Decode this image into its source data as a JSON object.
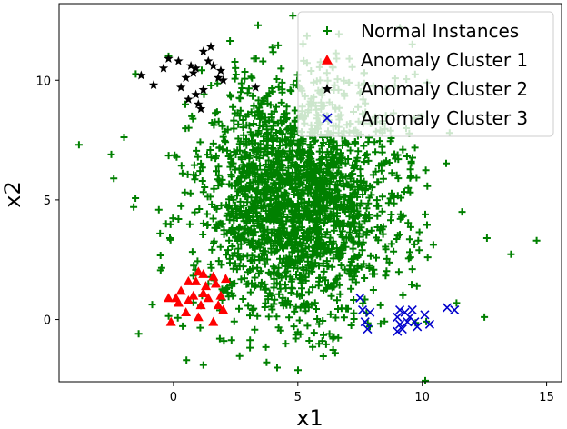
{
  "chart_data": {
    "type": "scatter",
    "xlabel": "x1",
    "ylabel": "x2",
    "xlim": [
      -4.6,
      15.6
    ],
    "ylim": [
      -2.6,
      13.2
    ],
    "xticks": [
      "0",
      "5",
      "10",
      "15"
    ],
    "yticks": [
      "0",
      "5",
      "10"
    ],
    "xtick_values": [
      0,
      5,
      10,
      15
    ],
    "ytick_values": [
      0,
      5,
      10
    ],
    "grid": false,
    "legend_position": "top-right",
    "series": [
      {
        "name": "Normal Instances",
        "marker": "plus",
        "color": "#008000",
        "count_approx": 2000,
        "distribution": "gaussian, center approx (5, 5), std approx (2, 2.5)",
        "outlier_points": [
          [
            -3.8,
            7.3
          ],
          [
            -2.5,
            6.9
          ],
          [
            -2.4,
            5.9
          ],
          [
            -1.6,
            4.7
          ],
          [
            -1.4,
            -0.6
          ],
          [
            -0.2,
            11.0
          ],
          [
            3.4,
            12.3
          ],
          [
            4.8,
            12.7
          ],
          [
            6.5,
            -1.4
          ],
          [
            7.6,
            8.6
          ],
          [
            11.6,
            4.5
          ],
          [
            12.5,
            0.1
          ],
          [
            12.6,
            3.4
          ],
          [
            14.6,
            3.3
          ],
          [
            1.2,
            -1.9
          ],
          [
            10.2,
            9.9
          ],
          [
            9.6,
            11.5
          ],
          [
            11.1,
            7.8
          ],
          [
            0.2,
            4.2
          ],
          [
            9.1,
            12.2
          ]
        ]
      },
      {
        "name": "Anomaly Cluster 1",
        "marker": "triangle",
        "color": "#ff0000",
        "points": [
          [
            -0.2,
            0.9
          ],
          [
            0.1,
            0.9
          ],
          [
            0.2,
            0.7
          ],
          [
            0.3,
            1.2
          ],
          [
            -0.1,
            -0.1
          ],
          [
            0.6,
            0.8
          ],
          [
            0.8,
            1.0
          ],
          [
            0.9,
            1.6
          ],
          [
            1.0,
            2.0
          ],
          [
            1.1,
            0.6
          ],
          [
            1.2,
            1.1
          ],
          [
            1.3,
            1.4
          ],
          [
            1.4,
            0.9
          ],
          [
            1.6,
            1.8
          ],
          [
            1.7,
            1.5
          ],
          [
            1.8,
            0.6
          ],
          [
            1.9,
            1.0
          ],
          [
            2.1,
            1.7
          ],
          [
            1.0,
            0.1
          ],
          [
            1.6,
            -0.1
          ],
          [
            2.0,
            0.4
          ],
          [
            0.6,
            1.6
          ],
          [
            1.2,
            1.9
          ],
          [
            0.5,
            0.3
          ]
        ]
      },
      {
        "name": "Anomaly Cluster 2",
        "marker": "star",
        "color": "#000000",
        "points": [
          [
            -1.3,
            10.2
          ],
          [
            -0.8,
            9.8
          ],
          [
            -0.4,
            10.5
          ],
          [
            -0.2,
            10.9
          ],
          [
            0.2,
            10.8
          ],
          [
            0.3,
            9.7
          ],
          [
            0.5,
            10.1
          ],
          [
            0.6,
            9.2
          ],
          [
            0.8,
            10.3
          ],
          [
            0.9,
            10.5
          ],
          [
            0.9,
            9.4
          ],
          [
            1.0,
            9.0
          ],
          [
            1.1,
            8.8
          ],
          [
            1.2,
            9.6
          ],
          [
            1.2,
            11.2
          ],
          [
            1.4,
            10.8
          ],
          [
            1.5,
            11.4
          ],
          [
            1.6,
            10.6
          ],
          [
            1.8,
            10.1
          ],
          [
            1.9,
            10.4
          ],
          [
            2.0,
            10.0
          ],
          [
            0.7,
            10.6
          ],
          [
            3.3,
            9.7
          ]
        ]
      },
      {
        "name": "Anomaly Cluster 3",
        "marker": "x",
        "color": "#0000cc",
        "points": [
          [
            7.5,
            0.9
          ],
          [
            7.6,
            0.4
          ],
          [
            7.7,
            -0.1
          ],
          [
            7.8,
            -0.4
          ],
          [
            7.9,
            0.3
          ],
          [
            9.0,
            0.1
          ],
          [
            9.1,
            0.4
          ],
          [
            9.1,
            -0.2
          ],
          [
            9.2,
            -0.4
          ],
          [
            9.3,
            0.3
          ],
          [
            9.4,
            -0.1
          ],
          [
            9.5,
            0.1
          ],
          [
            9.6,
            0.4
          ],
          [
            9.8,
            -0.3
          ],
          [
            10.1,
            0.2
          ],
          [
            10.3,
            -0.2
          ],
          [
            11.0,
            0.5
          ],
          [
            11.3,
            0.4
          ],
          [
            9.0,
            -0.5
          ],
          [
            9.7,
            -0.1
          ]
        ]
      }
    ]
  }
}
